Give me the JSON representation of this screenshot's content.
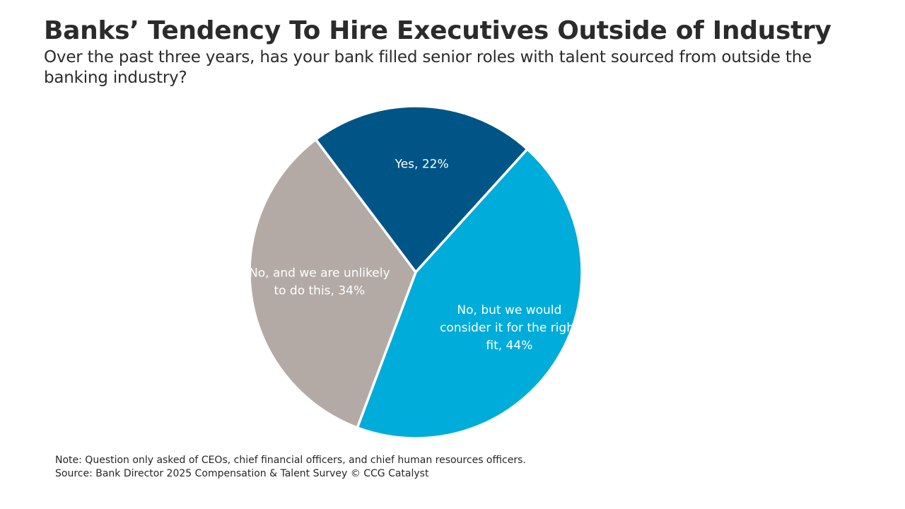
{
  "header": {
    "title": "Banks’ Tendency To Hire Executives Outside of Industry",
    "subtitle": "Over the past three years, has your bank filled senior roles with talent sourced from outside the banking industry?"
  },
  "chart_data": {
    "type": "pie",
    "title": "Banks’ Tendency To Hire Executives Outside of Industry",
    "slices": [
      {
        "label_lines": [
          "Yes, 22%"
        ],
        "value": 22,
        "color": "#005587"
      },
      {
        "label_lines": [
          "No, but we would",
          "consider it for the right",
          "fit, 44%"
        ],
        "value": 44,
        "color": "#00ACD9"
      },
      {
        "label_lines": [
          "No, and we are unlikely",
          "to do this, 34%"
        ],
        "value": 34,
        "color": "#B3AAA6"
      }
    ],
    "start_angle_deg": -37,
    "direction": "clockwise",
    "legend": "none",
    "data_labels": "inside"
  },
  "footer": {
    "note": "Note: Question only asked of CEOs, chief financial officers, and chief human resources officers.",
    "source": "Source: Bank Director 2025 Compensation & Talent Survey © CCG Catalyst"
  }
}
